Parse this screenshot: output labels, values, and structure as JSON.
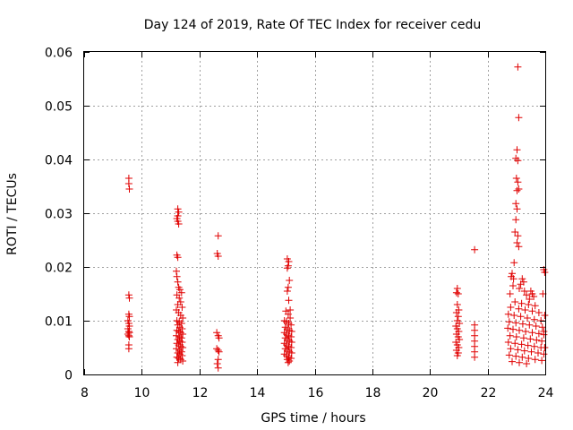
{
  "chart_data": {
    "type": "scatter",
    "title": "Day 124 of 2019, Rate Of TEC Index for receiver cedu",
    "xlabel": "GPS time / hours",
    "ylabel": "ROTI / TECUs",
    "xlim": [
      8,
      24
    ],
    "ylim": [
      0,
      0.06
    ],
    "xticks": [
      "8",
      "10",
      "12",
      "14",
      "16",
      "18",
      "20",
      "22",
      "24"
    ],
    "yticks": [
      "0",
      "0.01",
      "0.02",
      "0.03",
      "0.04",
      "0.05",
      "0.06"
    ],
    "grid": true,
    "marker": "+",
    "color": "#e00000",
    "series": [
      {
        "name": "ROTI",
        "points": [
          [
            9.55,
            0.0365
          ],
          [
            9.55,
            0.0355
          ],
          [
            9.57,
            0.0345
          ],
          [
            9.55,
            0.0148
          ],
          [
            9.57,
            0.0142
          ],
          [
            9.55,
            0.0112
          ],
          [
            9.57,
            0.0108
          ],
          [
            9.52,
            0.01
          ],
          [
            9.55,
            0.0095
          ],
          [
            9.57,
            0.009
          ],
          [
            9.52,
            0.0085
          ],
          [
            9.55,
            0.008
          ],
          [
            9.57,
            0.0078
          ],
          [
            9.52,
            0.0075
          ],
          [
            9.55,
            0.0072
          ],
          [
            9.57,
            0.007
          ],
          [
            9.55,
            0.0055
          ],
          [
            9.55,
            0.0048
          ],
          [
            11.25,
            0.0308
          ],
          [
            11.28,
            0.0302
          ],
          [
            11.25,
            0.0295
          ],
          [
            11.22,
            0.029
          ],
          [
            11.25,
            0.0285
          ],
          [
            11.28,
            0.028
          ],
          [
            11.22,
            0.0222
          ],
          [
            11.25,
            0.0218
          ],
          [
            11.2,
            0.0192
          ],
          [
            11.22,
            0.0182
          ],
          [
            11.25,
            0.0172
          ],
          [
            11.28,
            0.0162
          ],
          [
            11.32,
            0.0158
          ],
          [
            11.38,
            0.0152
          ],
          [
            11.22,
            0.0148
          ],
          [
            11.3,
            0.0142
          ],
          [
            11.35,
            0.0135
          ],
          [
            11.25,
            0.013
          ],
          [
            11.4,
            0.0125
          ],
          [
            11.2,
            0.012
          ],
          [
            11.28,
            0.0115
          ],
          [
            11.35,
            0.011
          ],
          [
            11.42,
            0.0105
          ],
          [
            11.22,
            0.01
          ],
          [
            11.3,
            0.0098
          ],
          [
            11.38,
            0.0095
          ],
          [
            11.25,
            0.0092
          ],
          [
            11.32,
            0.0088
          ],
          [
            11.4,
            0.0085
          ],
          [
            11.22,
            0.0082
          ],
          [
            11.28,
            0.008
          ],
          [
            11.35,
            0.0078
          ],
          [
            11.42,
            0.0075
          ],
          [
            11.2,
            0.0072
          ],
          [
            11.3,
            0.007
          ],
          [
            11.38,
            0.0068
          ],
          [
            11.25,
            0.0065
          ],
          [
            11.32,
            0.0062
          ],
          [
            11.4,
            0.006
          ],
          [
            11.22,
            0.0058
          ],
          [
            11.28,
            0.0055
          ],
          [
            11.35,
            0.0052
          ],
          [
            11.42,
            0.005
          ],
          [
            11.2,
            0.0048
          ],
          [
            11.3,
            0.0045
          ],
          [
            11.38,
            0.0042
          ],
          [
            11.25,
            0.004
          ],
          [
            11.32,
            0.0038
          ],
          [
            11.4,
            0.0035
          ],
          [
            11.22,
            0.0032
          ],
          [
            11.28,
            0.003
          ],
          [
            11.35,
            0.0028
          ],
          [
            11.42,
            0.0025
          ],
          [
            11.25,
            0.0022
          ],
          [
            12.65,
            0.0258
          ],
          [
            12.62,
            0.0225
          ],
          [
            12.65,
            0.022
          ],
          [
            12.6,
            0.0078
          ],
          [
            12.65,
            0.0072
          ],
          [
            12.68,
            0.0068
          ],
          [
            12.6,
            0.0048
          ],
          [
            12.65,
            0.0045
          ],
          [
            12.68,
            0.0042
          ],
          [
            12.65,
            0.0028
          ],
          [
            12.62,
            0.002
          ],
          [
            12.65,
            0.0012
          ],
          [
            15.05,
            0.0215
          ],
          [
            15.1,
            0.021
          ],
          [
            15.08,
            0.0202
          ],
          [
            15.05,
            0.0198
          ],
          [
            15.12,
            0.0175
          ],
          [
            15.08,
            0.0162
          ],
          [
            15.05,
            0.0155
          ],
          [
            15.1,
            0.0138
          ],
          [
            15.15,
            0.012
          ],
          [
            15.0,
            0.0118
          ],
          [
            15.08,
            0.0112
          ],
          [
            15.15,
            0.0105
          ],
          [
            14.95,
            0.01
          ],
          [
            15.02,
            0.0098
          ],
          [
            15.1,
            0.0095
          ],
          [
            15.18,
            0.0092
          ],
          [
            14.98,
            0.0088
          ],
          [
            15.05,
            0.0085
          ],
          [
            15.12,
            0.0082
          ],
          [
            15.2,
            0.008
          ],
          [
            14.95,
            0.0078
          ],
          [
            15.02,
            0.0075
          ],
          [
            15.1,
            0.0072
          ],
          [
            15.18,
            0.007
          ],
          [
            14.98,
            0.0068
          ],
          [
            15.05,
            0.0065
          ],
          [
            15.12,
            0.0062
          ],
          [
            15.2,
            0.006
          ],
          [
            14.95,
            0.0058
          ],
          [
            15.02,
            0.0055
          ],
          [
            15.1,
            0.0052
          ],
          [
            15.18,
            0.005
          ],
          [
            14.98,
            0.0048
          ],
          [
            15.05,
            0.0045
          ],
          [
            15.12,
            0.0042
          ],
          [
            15.2,
            0.004
          ],
          [
            14.95,
            0.0038
          ],
          [
            15.02,
            0.0035
          ],
          [
            15.1,
            0.0032
          ],
          [
            15.18,
            0.003
          ],
          [
            15.05,
            0.0028
          ],
          [
            15.12,
            0.0025
          ],
          [
            15.08,
            0.0022
          ],
          [
            20.95,
            0.016
          ],
          [
            20.92,
            0.0152
          ],
          [
            20.98,
            0.015
          ],
          [
            20.95,
            0.013
          ],
          [
            21.0,
            0.012
          ],
          [
            20.92,
            0.0115
          ],
          [
            20.98,
            0.0108
          ],
          [
            20.95,
            0.01
          ],
          [
            21.02,
            0.0095
          ],
          [
            20.9,
            0.009
          ],
          [
            20.95,
            0.0085
          ],
          [
            21.0,
            0.008
          ],
          [
            20.92,
            0.0075
          ],
          [
            20.98,
            0.007
          ],
          [
            21.02,
            0.0065
          ],
          [
            20.9,
            0.006
          ],
          [
            20.95,
            0.0055
          ],
          [
            21.0,
            0.005
          ],
          [
            20.92,
            0.0045
          ],
          [
            20.98,
            0.004
          ],
          [
            20.95,
            0.0035
          ],
          [
            21.55,
            0.0232
          ],
          [
            21.55,
            0.0092
          ],
          [
            21.55,
            0.0082
          ],
          [
            21.55,
            0.0072
          ],
          [
            21.55,
            0.0062
          ],
          [
            21.55,
            0.0052
          ],
          [
            21.55,
            0.0042
          ],
          [
            21.55,
            0.0032
          ],
          [
            23.05,
            0.0572
          ],
          [
            23.08,
            0.0478
          ],
          [
            23.02,
            0.0418
          ],
          [
            22.98,
            0.0402
          ],
          [
            23.05,
            0.0398
          ],
          [
            23.0,
            0.0365
          ],
          [
            23.05,
            0.0358
          ],
          [
            23.08,
            0.0345
          ],
          [
            23.02,
            0.0342
          ],
          [
            22.98,
            0.0318
          ],
          [
            23.02,
            0.0308
          ],
          [
            22.98,
            0.0288
          ],
          [
            22.95,
            0.0265
          ],
          [
            23.05,
            0.0258
          ],
          [
            23.02,
            0.0245
          ],
          [
            23.08,
            0.0238
          ],
          [
            22.92,
            0.0208
          ],
          [
            22.85,
            0.0188
          ],
          [
            22.82,
            0.0182
          ],
          [
            22.9,
            0.0178
          ],
          [
            23.2,
            0.0178
          ],
          [
            23.25,
            0.0172
          ],
          [
            23.15,
            0.0168
          ],
          [
            22.88,
            0.0165
          ],
          [
            23.1,
            0.016
          ],
          [
            23.28,
            0.0155
          ],
          [
            22.78,
            0.015
          ],
          [
            23.5,
            0.0155
          ],
          [
            23.55,
            0.015
          ],
          [
            23.35,
            0.0148
          ],
          [
            23.6,
            0.0145
          ],
          [
            23.45,
            0.014
          ],
          [
            22.95,
            0.0135
          ],
          [
            23.18,
            0.0132
          ],
          [
            23.42,
            0.013
          ],
          [
            23.65,
            0.0128
          ],
          [
            22.8,
            0.0125
          ],
          [
            23.08,
            0.0122
          ],
          [
            23.3,
            0.012
          ],
          [
            23.55,
            0.0118
          ],
          [
            23.78,
            0.0115
          ],
          [
            22.72,
            0.0112
          ],
          [
            22.92,
            0.011
          ],
          [
            23.15,
            0.0108
          ],
          [
            23.38,
            0.0105
          ],
          [
            23.62,
            0.0102
          ],
          [
            23.85,
            0.01
          ],
          [
            22.75,
            0.0098
          ],
          [
            22.98,
            0.0096
          ],
          [
            23.22,
            0.0094
          ],
          [
            23.45,
            0.0092
          ],
          [
            23.68,
            0.009
          ],
          [
            23.9,
            0.0088
          ],
          [
            22.7,
            0.0086
          ],
          [
            22.88,
            0.0084
          ],
          [
            23.1,
            0.0082
          ],
          [
            23.32,
            0.008
          ],
          [
            23.55,
            0.0078
          ],
          [
            23.78,
            0.0076
          ],
          [
            23.95,
            0.0074
          ],
          [
            22.78,
            0.0072
          ],
          [
            23.0,
            0.007
          ],
          [
            23.25,
            0.0068
          ],
          [
            23.48,
            0.0066
          ],
          [
            23.7,
            0.0064
          ],
          [
            23.88,
            0.0062
          ],
          [
            22.72,
            0.006
          ],
          [
            22.95,
            0.0058
          ],
          [
            23.18,
            0.0056
          ],
          [
            23.4,
            0.0054
          ],
          [
            23.62,
            0.0052
          ],
          [
            23.85,
            0.005
          ],
          [
            22.8,
            0.0048
          ],
          [
            23.05,
            0.0046
          ],
          [
            23.28,
            0.0044
          ],
          [
            23.52,
            0.0042
          ],
          [
            23.75,
            0.004
          ],
          [
            23.95,
            0.0038
          ],
          [
            22.75,
            0.0036
          ],
          [
            22.98,
            0.0034
          ],
          [
            23.2,
            0.0032
          ],
          [
            23.42,
            0.003
          ],
          [
            23.65,
            0.0028
          ],
          [
            23.88,
            0.0026
          ],
          [
            22.85,
            0.0024
          ],
          [
            23.1,
            0.0022
          ],
          [
            23.35,
            0.002
          ],
          [
            23.95,
            0.0195
          ],
          [
            23.98,
            0.019
          ],
          [
            23.92,
            0.015
          ],
          [
            23.98,
            0.011
          ],
          [
            23.95,
            0.008
          ],
          [
            23.98,
            0.005
          ]
        ]
      }
    ]
  }
}
